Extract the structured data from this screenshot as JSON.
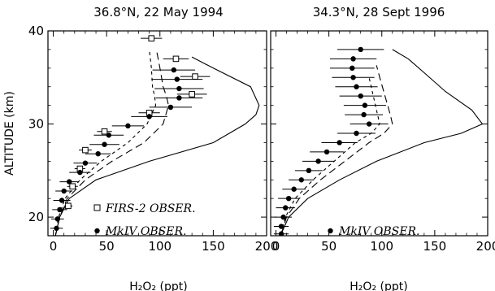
{
  "chart_data": [
    {
      "type": "scatter",
      "title": "36.8°N, 22 May 1994",
      "xlabel": "H₂O₂ (ppt)",
      "ylabel": "ALTITUDE (km)",
      "xlim": [
        -5,
        200
      ],
      "ylim": [
        18,
        40
      ],
      "xticks": [
        "0",
        "50",
        "100",
        "150",
        "200"
      ],
      "yticks": [
        "20",
        "30",
        "40"
      ],
      "legend": [
        "FIRS-2 OBSER.",
        "MkIV OBSER."
      ],
      "legend_placement": "bottom-right",
      "series": [
        {
          "name": "FIRS-2 OBSER.",
          "marker": "open-square",
          "points": [
            {
              "x": 92,
              "y": 39.2,
              "err": 10
            },
            {
              "x": 115,
              "y": 37.0,
              "err": 12
            },
            {
              "x": 133,
              "y": 35.1,
              "err": 14
            },
            {
              "x": 130,
              "y": 33.2,
              "err": 14
            },
            {
              "x": 90,
              "y": 31.2,
              "err": 10
            },
            {
              "x": 48,
              "y": 29.2,
              "err": 7
            },
            {
              "x": 30,
              "y": 27.2,
              "err": 6
            },
            {
              "x": 25,
              "y": 25.2,
              "err": 5
            },
            {
              "x": 18,
              "y": 23.3,
              "err": 5
            },
            {
              "x": 14,
              "y": 21.2,
              "err": 4
            }
          ]
        },
        {
          "name": "MkIV OBSER.",
          "marker": "filled-circle",
          "points": [
            {
              "x": 113,
              "y": 35.8,
              "err": 20
            },
            {
              "x": 116,
              "y": 34.8,
              "err": 24
            },
            {
              "x": 118,
              "y": 33.8,
              "err": 23
            },
            {
              "x": 118,
              "y": 32.8,
              "err": 22
            },
            {
              "x": 110,
              "y": 31.8,
              "err": 20
            },
            {
              "x": 90,
              "y": 30.8,
              "err": 17
            },
            {
              "x": 70,
              "y": 29.8,
              "err": 15
            },
            {
              "x": 52,
              "y": 28.8,
              "err": 14
            },
            {
              "x": 48,
              "y": 27.8,
              "err": 14
            },
            {
              "x": 42,
              "y": 26.8,
              "err": 12
            },
            {
              "x": 30,
              "y": 25.8,
              "err": 11
            },
            {
              "x": 25,
              "y": 24.8,
              "err": 10
            },
            {
              "x": 15,
              "y": 23.8,
              "err": 9
            },
            {
              "x": 10,
              "y": 22.8,
              "err": 8
            },
            {
              "x": 8,
              "y": 21.8,
              "err": 8
            },
            {
              "x": 6,
              "y": 20.8,
              "err": 7
            },
            {
              "x": 4,
              "y": 19.8,
              "err": 6
            },
            {
              "x": 3,
              "y": 18.8,
              "err": 6
            }
          ]
        }
      ],
      "model_curves": [
        {
          "style": "solid",
          "x": [
            2,
            6,
            15,
            40,
            90,
            150,
            180,
            190,
            193,
            185,
            150,
            130
          ],
          "y": [
            18,
            20,
            22,
            24,
            26,
            28,
            30,
            31,
            32,
            34,
            36,
            37.2
          ]
        },
        {
          "style": "long-dash",
          "x": [
            2,
            6,
            13,
            30,
            55,
            85,
            103,
            108,
            106,
            103,
            100,
            97
          ],
          "y": [
            18,
            20,
            22,
            24,
            26,
            28,
            30,
            32,
            33,
            34,
            36,
            37.8
          ]
        },
        {
          "style": "short-dash",
          "x": [
            2,
            5,
            11,
            25,
            45,
            70,
            88,
            96,
            95,
            93,
            92,
            90
          ],
          "y": [
            18,
            20,
            22,
            24,
            26,
            28,
            30,
            32,
            33,
            34,
            36,
            38
          ]
        }
      ]
    },
    {
      "type": "scatter",
      "title": "34.3°N, 28 Sept 1996",
      "xlabel": "H₂O₂ (ppt)",
      "xlim": [
        -5,
        200
      ],
      "ylim": [
        18,
        40
      ],
      "xticks": [
        "0",
        "50",
        "100",
        "150",
        "200"
      ],
      "legend": [
        "MkIV OBSER."
      ],
      "legend_placement": "bottom-right",
      "series": [
        {
          "name": "MkIV OBSER.",
          "marker": "filled-circle",
          "points": [
            {
              "x": 80,
              "y": 38.0,
              "err": 22
            },
            {
              "x": 73,
              "y": 37.0,
              "err": 22
            },
            {
              "x": 72,
              "y": 36.0,
              "err": 21
            },
            {
              "x": 73,
              "y": 35.0,
              "err": 20
            },
            {
              "x": 76,
              "y": 34.0,
              "err": 20
            },
            {
              "x": 80,
              "y": 33.0,
              "err": 20
            },
            {
              "x": 84,
              "y": 32.0,
              "err": 20
            },
            {
              "x": 83,
              "y": 31.0,
              "err": 18
            },
            {
              "x": 88,
              "y": 30.0,
              "err": 18
            },
            {
              "x": 76,
              "y": 29.0,
              "err": 18
            },
            {
              "x": 60,
              "y": 28.0,
              "err": 17
            },
            {
              "x": 48,
              "y": 27.0,
              "err": 16
            },
            {
              "x": 40,
              "y": 26.0,
              "err": 15
            },
            {
              "x": 31,
              "y": 25.0,
              "err": 13
            },
            {
              "x": 24,
              "y": 24.0,
              "err": 12
            },
            {
              "x": 17,
              "y": 23.0,
              "err": 11
            },
            {
              "x": 12,
              "y": 22.0,
              "err": 10
            },
            {
              "x": 9,
              "y": 21.0,
              "err": 9
            },
            {
              "x": 7,
              "y": 20.0,
              "err": 8
            },
            {
              "x": 5,
              "y": 19.0,
              "err": 7
            },
            {
              "x": 5,
              "y": 18.2,
              "err": 7
            }
          ]
        }
      ],
      "model_curves": [
        {
          "style": "solid",
          "x": [
            5,
            12,
            30,
            60,
            95,
            140,
            175,
            195,
            185,
            160,
            140,
            125,
            110
          ],
          "y": [
            18.2,
            20,
            22,
            24,
            26,
            28,
            29,
            30,
            31.5,
            33.5,
            35.5,
            37,
            38
          ]
        },
        {
          "style": "long-dash",
          "x": [
            5,
            10,
            22,
            42,
            65,
            88,
            102,
            110,
            108,
            103,
            98,
            95
          ],
          "y": [
            18.2,
            20,
            22,
            24,
            26,
            28,
            29,
            30,
            31,
            33,
            35,
            36.3
          ]
        },
        {
          "style": "short-dash",
          "x": [
            5,
            9,
            18,
            35,
            55,
            75,
            90,
            98,
            96,
            92,
            88
          ],
          "y": [
            18.2,
            20,
            22,
            24,
            26,
            28,
            29,
            30,
            31,
            33,
            35
          ]
        }
      ]
    }
  ]
}
